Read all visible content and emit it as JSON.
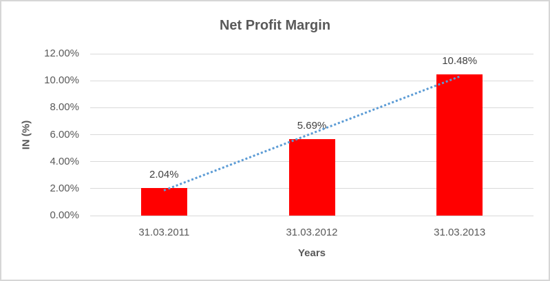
{
  "chart_data": {
    "type": "bar",
    "title": "Net Profit Margin",
    "xlabel": "Years",
    "ylabel": "IN (%)",
    "categories": [
      "31.03.2011",
      "31.03.2012",
      "31.03.2013"
    ],
    "values": [
      2.04,
      5.69,
      10.48
    ],
    "data_labels": [
      "2.04%",
      "5.69%",
      "10.48%"
    ],
    "ylim": [
      0,
      12
    ],
    "yticks": [
      {
        "value": 0,
        "label": "0.00%"
      },
      {
        "value": 2,
        "label": "2.00%"
      },
      {
        "value": 4,
        "label": "4.00%"
      },
      {
        "value": 6,
        "label": "6.00%"
      },
      {
        "value": 8,
        "label": "8.00%"
      },
      {
        "value": 10,
        "label": "10.00%"
      },
      {
        "value": 12,
        "label": "12.00%"
      }
    ],
    "grid": true,
    "legend": "none",
    "bar_color": "#FF0000",
    "trendline": {
      "type": "linear",
      "style": "dotted",
      "color": "#5B9BD5"
    },
    "gridline_color": "#D9D9D9",
    "border_color": "#D6D6D6",
    "text_colors": {
      "title": "#595959",
      "axis": "#595959",
      "data_label": "#404040"
    }
  }
}
